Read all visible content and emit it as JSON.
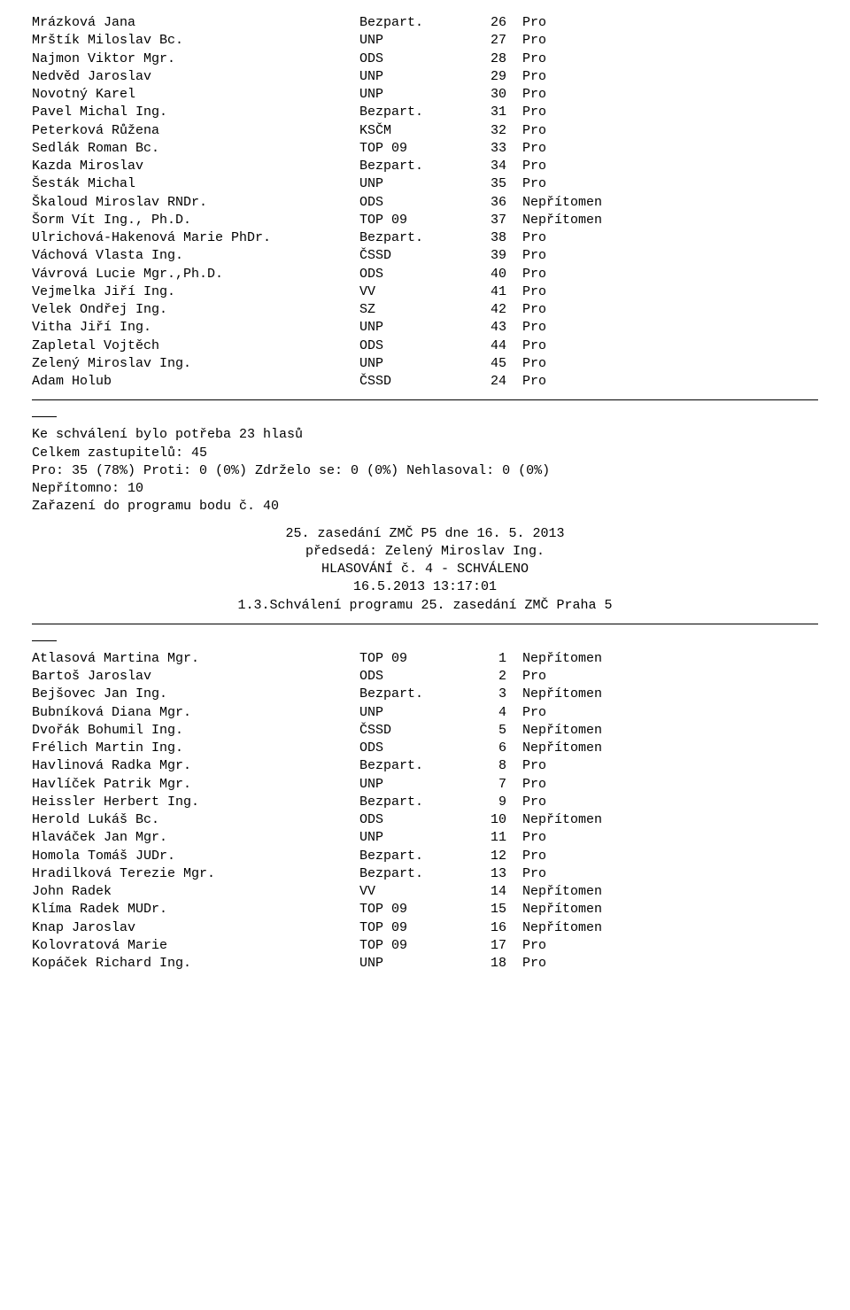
{
  "table1": {
    "rows": [
      {
        "name": "Mrázková Jana",
        "party": "Bezpart.",
        "num": "26",
        "vote": "Pro"
      },
      {
        "name": "Mrštík Miloslav Bc.",
        "party": "UNP",
        "num": "27",
        "vote": "Pro"
      },
      {
        "name": "Najmon Viktor Mgr.",
        "party": "ODS",
        "num": "28",
        "vote": "Pro"
      },
      {
        "name": "Nedvěd Jaroslav",
        "party": "UNP",
        "num": "29",
        "vote": "Pro"
      },
      {
        "name": "Novotný Karel",
        "party": "UNP",
        "num": "30",
        "vote": "Pro"
      },
      {
        "name": "Pavel Michal Ing.",
        "party": "Bezpart.",
        "num": "31",
        "vote": "Pro"
      },
      {
        "name": "Peterková Růžena",
        "party": "KSČM",
        "num": "32",
        "vote": "Pro"
      },
      {
        "name": "Sedlák Roman Bc.",
        "party": "TOP 09",
        "num": "33",
        "vote": "Pro"
      },
      {
        "name": "Kazda Miroslav",
        "party": "Bezpart.",
        "num": "34",
        "vote": "Pro"
      },
      {
        "name": "Šesták Michal",
        "party": "UNP",
        "num": "35",
        "vote": "Pro"
      },
      {
        "name": "Škaloud Miroslav RNDr.",
        "party": "ODS",
        "num": "36",
        "vote": "Nepřítomen"
      },
      {
        "name": "Šorm Vít Ing., Ph.D.",
        "party": "TOP 09",
        "num": "37",
        "vote": "Nepřítomen"
      },
      {
        "name": "Ulrichová-Hakenová Marie PhDr.",
        "party": "Bezpart.",
        "num": "38",
        "vote": "Pro"
      },
      {
        "name": "Váchová Vlasta Ing.",
        "party": "ČSSD",
        "num": "39",
        "vote": "Pro"
      },
      {
        "name": "Vávrová Lucie Mgr.,Ph.D.",
        "party": "ODS",
        "num": "40",
        "vote": "Pro"
      },
      {
        "name": "Vejmelka Jiří Ing.",
        "party": "VV",
        "num": "41",
        "vote": "Pro"
      },
      {
        "name": "Velek Ondřej Ing.",
        "party": "SZ",
        "num": "42",
        "vote": "Pro"
      },
      {
        "name": "Vitha Jiří Ing.",
        "party": "UNP",
        "num": "43",
        "vote": "Pro"
      },
      {
        "name": "Zapletal Vojtěch",
        "party": "ODS",
        "num": "44",
        "vote": "Pro"
      },
      {
        "name": "Zelený Miroslav Ing.",
        "party": "UNP",
        "num": "45",
        "vote": "Pro"
      },
      {
        "name": "Adam Holub",
        "party": "ČSSD",
        "num": "24",
        "vote": "Pro"
      }
    ]
  },
  "summary": {
    "l1": "Ke schválení bylo potřeba 23 hlasů",
    "l2": "Celkem zastupitelů: 45",
    "l3": "Pro: 35 (78%)  Proti: 0 (0%)  Zdrželo se: 0 (0%)  Nehlasoval: 0 (0%)",
    "l4": "Nepřítomno: 10",
    "l5": "Zařazení do programu bodu č. 40"
  },
  "header": {
    "l1": "25. zasedání ZMČ P5 dne 16. 5. 2013",
    "l2": "předsedá: Zelený Miroslav Ing.",
    "l3": "HLASOVÁNÍ č. 4 - SCHVÁLENO",
    "l4": "16.5.2013 13:17:01",
    "l5": "1.3.Schválení programu 25. zasedání ZMČ Praha 5"
  },
  "table2": {
    "rows": [
      {
        "name": "Atlasová Martina Mgr.",
        "party": "TOP 09",
        "num": "1",
        "vote": "Nepřítomen"
      },
      {
        "name": "Bartoš Jaroslav",
        "party": "ODS",
        "num": "2",
        "vote": "Pro"
      },
      {
        "name": "Bejšovec Jan Ing.",
        "party": "Bezpart.",
        "num": "3",
        "vote": "Nepřítomen"
      },
      {
        "name": "Bubníková Diana Mgr.",
        "party": "UNP",
        "num": "4",
        "vote": "Pro"
      },
      {
        "name": "Dvořák Bohumil Ing.",
        "party": "ČSSD",
        "num": "5",
        "vote": "Nepřítomen"
      },
      {
        "name": "Frélich Martin Ing.",
        "party": "ODS",
        "num": "6",
        "vote": "Nepřítomen"
      },
      {
        "name": "Havlinová Radka Mgr.",
        "party": "Bezpart.",
        "num": "8",
        "vote": "Pro"
      },
      {
        "name": "Havlíček Patrik Mgr.",
        "party": "UNP",
        "num": "7",
        "vote": "Pro"
      },
      {
        "name": "Heissler Herbert Ing.",
        "party": "Bezpart.",
        "num": "9",
        "vote": "Pro"
      },
      {
        "name": "Herold Lukáš Bc.",
        "party": "ODS",
        "num": "10",
        "vote": "Nepřítomen"
      },
      {
        "name": "Hlaváček Jan Mgr.",
        "party": "UNP",
        "num": "11",
        "vote": "Pro"
      },
      {
        "name": "Homola Tomáš JUDr.",
        "party": "Bezpart.",
        "num": "12",
        "vote": "Pro"
      },
      {
        "name": "Hradilková Terezie Mgr.",
        "party": "Bezpart.",
        "num": "13",
        "vote": "Pro"
      },
      {
        "name": "John Radek",
        "party": "VV",
        "num": "14",
        "vote": "Nepřítomen"
      },
      {
        "name": "Klíma Radek MUDr.",
        "party": "TOP 09",
        "num": "15",
        "vote": "Nepřítomen"
      },
      {
        "name": "Knap Jaroslav",
        "party": "TOP 09",
        "num": "16",
        "vote": "Nepřítomen"
      },
      {
        "name": "Kolovratová Marie",
        "party": "TOP 09",
        "num": "17",
        "vote": "Pro"
      },
      {
        "name": "Kopáček Richard Ing.",
        "party": "UNP",
        "num": "18",
        "vote": "Pro"
      }
    ]
  }
}
